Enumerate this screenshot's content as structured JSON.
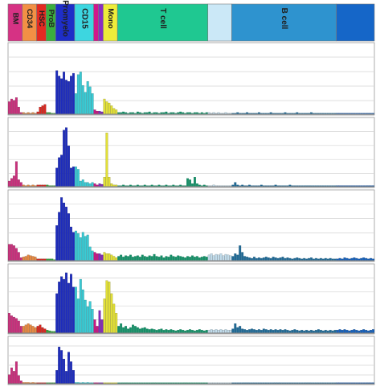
{
  "chart_data": {
    "type": "bar",
    "title": "",
    "xlabel": "",
    "ylabel": "",
    "grid": true,
    "cell_types": [
      {
        "key": "bm",
        "label": "BM",
        "color": "#d63284",
        "samples": 6
      },
      {
        "key": "cd34",
        "label": "CD34",
        "color": "#f29045",
        "samples": 6
      },
      {
        "key": "hsc",
        "label": "HSC",
        "color": "#e32a22",
        "samples": 4
      },
      {
        "key": "prob",
        "label": "ProB",
        "color": "#3aae3f",
        "samples": 4
      },
      {
        "key": "promyelo",
        "label": "Promyelo",
        "color": "#1e2ec8",
        "samples": 8
      },
      {
        "key": "cd15",
        "label": "CD15",
        "color": "#3dd6e0",
        "samples": 8
      },
      {
        "key": "baso",
        "label": "",
        "color": "#d1178a",
        "samples": 2
      },
      {
        "key": "eos",
        "label": "",
        "color": "#8a2dc2",
        "samples": 2
      },
      {
        "key": "mono",
        "label": "Mono",
        "color": "#eeec3a",
        "samples": 6
      },
      {
        "key": "tcell",
        "label": "T cell",
        "color": "#1fc891",
        "samples": 38
      },
      {
        "key": "nk",
        "label": "",
        "color": "#cbe8f7",
        "samples": 10
      },
      {
        "key": "bcell",
        "label": "B cell",
        "color": "#2e93cf",
        "samples": 44
      },
      {
        "key": "plasma",
        "label": "",
        "color": "#1566c8",
        "samples": 16
      }
    ],
    "series": [
      {
        "name": "",
        "values": {
          "bm": [
            0.18,
            0.22,
            0.2,
            0.24,
            0.1,
            0.02
          ],
          "cd34": [
            0.02,
            0.01,
            0.02,
            0.01,
            0.02,
            0.01
          ],
          "hsc": [
            0.03,
            0.1,
            0.12,
            0.14
          ],
          "prob": [
            0.02,
            0.02,
            0.01,
            0.01
          ],
          "promyelo": [
            0.64,
            0.56,
            0.52,
            0.62,
            0.5,
            0.48,
            0.56,
            0.6
          ],
          "cd15": [
            0.3,
            0.58,
            0.62,
            0.42,
            0.32,
            0.48,
            0.4,
            0.3
          ],
          "baso": [
            0.06,
            0.04
          ],
          "eos": [
            0.04,
            0.03
          ],
          "mono": [
            0.22,
            0.18,
            0.16,
            0.12,
            0.08,
            0.06
          ],
          "tcell": [
            0.02,
            0.02,
            0.03,
            0.02,
            0.01,
            0.02,
            0.02,
            0.01,
            0.03,
            0.02,
            0.01,
            0.02,
            0.02,
            0.03,
            0.01,
            0.02,
            0.02,
            0.01,
            0.02,
            0.02,
            0.03,
            0.01,
            0.02,
            0.02,
            0.01,
            0.02,
            0.03,
            0.02,
            0.01,
            0.02,
            0.02,
            0.01,
            0.02,
            0.02,
            0.01,
            0.02,
            0.01,
            0.02
          ],
          "nk": [
            0.02,
            0.01,
            0.02,
            0.01,
            0.02,
            0.01,
            0.01,
            0.02,
            0.01,
            0.01
          ],
          "bcell": [
            0.01,
            0.01,
            0.02,
            0.01,
            0.01,
            0.01,
            0.02,
            0.01,
            0.01,
            0.01,
            0.01,
            0.02,
            0.01,
            0.01,
            0.01,
            0.01,
            0.02,
            0.01,
            0.01,
            0.01,
            0.01,
            0.01,
            0.02,
            0.01,
            0.01,
            0.01,
            0.01,
            0.02,
            0.01,
            0.01,
            0.01,
            0.01,
            0.01,
            0.02,
            0.01,
            0.01,
            0.01,
            0.01,
            0.01,
            0.01,
            0.01,
            0.01,
            0.01,
            0.01
          ],
          "plasma": [
            0.01,
            0.01,
            0.01,
            0.01,
            0.01,
            0.01,
            0.01,
            0.01,
            0.01,
            0.01,
            0.01,
            0.01,
            0.01,
            0.01,
            0.01,
            0.01
          ]
        }
      },
      {
        "name": "",
        "values": {
          "bm": [
            0.08,
            0.12,
            0.16,
            0.38,
            0.1,
            0.06
          ],
          "cd34": [
            0.02,
            0.01,
            0.02,
            0.01,
            0.02,
            0.01
          ],
          "hsc": [
            0.02,
            0.02,
            0.02,
            0.02
          ],
          "prob": [
            0.02,
            0.01,
            0.01,
            0.01
          ],
          "promyelo": [
            0.28,
            0.44,
            0.48,
            0.86,
            0.9,
            0.62,
            0.28,
            0.3
          ],
          "cd15": [
            0.3,
            0.26,
            0.08,
            0.1,
            0.06,
            0.06,
            0.04,
            0.06
          ],
          "baso": [
            0.04,
            0.02
          ],
          "eos": [
            0.04,
            0.03
          ],
          "mono": [
            0.14,
            0.82,
            0.14,
            0.04,
            0.02,
            0.02
          ],
          "tcell": [
            0.01,
            0.01,
            0.02,
            0.01,
            0.01,
            0.02,
            0.01,
            0.01,
            0.02,
            0.01,
            0.01,
            0.02,
            0.01,
            0.01,
            0.02,
            0.01,
            0.01,
            0.02,
            0.01,
            0.01,
            0.02,
            0.01,
            0.01,
            0.02,
            0.01,
            0.01,
            0.02,
            0.01,
            0.01,
            0.12,
            0.1,
            0.04,
            0.14,
            0.04,
            0.02,
            0.01,
            0.02,
            0.01
          ],
          "nk": [
            0.01,
            0.01,
            0.02,
            0.01,
            0.01,
            0.01,
            0.01,
            0.01,
            0.01,
            0.01
          ],
          "bcell": [
            0.02,
            0.06,
            0.02,
            0.01,
            0.02,
            0.01,
            0.01,
            0.02,
            0.01,
            0.01,
            0.01,
            0.01,
            0.02,
            0.01,
            0.01,
            0.01,
            0.01,
            0.01,
            0.02,
            0.01,
            0.01,
            0.01,
            0.01,
            0.01,
            0.02,
            0.01,
            0.01,
            0.01,
            0.01,
            0.01,
            0.01,
            0.01,
            0.01,
            0.01,
            0.01,
            0.01,
            0.01,
            0.01,
            0.01,
            0.01,
            0.01,
            0.01,
            0.01,
            0.01
          ],
          "plasma": [
            0.01,
            0.01,
            0.01,
            0.01,
            0.01,
            0.01,
            0.01,
            0.01,
            0.01,
            0.01,
            0.01,
            0.01,
            0.01,
            0.01,
            0.01,
            0.01
          ]
        }
      },
      {
        "name": "",
        "values": {
          "bm": [
            0.24,
            0.24,
            0.22,
            0.18,
            0.12,
            0.04
          ],
          "cd34": [
            0.05,
            0.06,
            0.08,
            0.07,
            0.06,
            0.05
          ],
          "hsc": [
            0.02,
            0.02,
            0.02,
            0.02
          ],
          "prob": [
            0.02,
            0.02,
            0.02,
            0.01
          ],
          "promyelo": [
            0.52,
            0.72,
            0.94,
            0.86,
            0.8,
            0.7,
            0.5,
            0.42
          ],
          "cd15": [
            0.44,
            0.4,
            0.34,
            0.42,
            0.36,
            0.38,
            0.2,
            0.14
          ],
          "baso": [
            0.12,
            0.1
          ],
          "eos": [
            0.1,
            0.08
          ],
          "mono": [
            0.12,
            0.1,
            0.1,
            0.08,
            0.06,
            0.04
          ],
          "tcell": [
            0.06,
            0.08,
            0.05,
            0.07,
            0.06,
            0.08,
            0.05,
            0.06,
            0.07,
            0.05,
            0.08,
            0.06,
            0.05,
            0.07,
            0.06,
            0.09,
            0.06,
            0.05,
            0.07,
            0.04,
            0.06,
            0.05,
            0.08,
            0.06,
            0.05,
            0.07,
            0.06,
            0.05,
            0.04,
            0.06,
            0.05,
            0.07,
            0.05,
            0.06,
            0.04,
            0.05,
            0.06,
            0.05
          ],
          "nk": [
            0.08,
            0.1,
            0.07,
            0.09,
            0.08,
            0.1,
            0.07,
            0.09,
            0.08,
            0.07
          ],
          "bcell": [
            0.06,
            0.1,
            0.08,
            0.22,
            0.12,
            0.06,
            0.05,
            0.04,
            0.03,
            0.05,
            0.03,
            0.04,
            0.03,
            0.04,
            0.05,
            0.04,
            0.03,
            0.05,
            0.04,
            0.03,
            0.04,
            0.05,
            0.03,
            0.04,
            0.03,
            0.02,
            0.03,
            0.04,
            0.03,
            0.02,
            0.03,
            0.02,
            0.03,
            0.04,
            0.02,
            0.03,
            0.02,
            0.03,
            0.02,
            0.03,
            0.02,
            0.03,
            0.02,
            0.02
          ],
          "plasma": [
            0.02,
            0.03,
            0.02,
            0.04,
            0.03,
            0.02,
            0.03,
            0.04,
            0.03,
            0.02,
            0.03,
            0.04,
            0.03,
            0.02,
            0.03,
            0.02
          ]
        }
      },
      {
        "name": "",
        "values": {
          "bm": [
            0.3,
            0.26,
            0.24,
            0.22,
            0.18,
            0.1
          ],
          "cd34": [
            0.1,
            0.12,
            0.14,
            0.12,
            0.1,
            0.08
          ],
          "hsc": [
            0.1,
            0.12,
            0.08,
            0.06
          ],
          "prob": [
            0.04,
            0.03,
            0.02,
            0.02
          ],
          "promyelo": [
            0.6,
            0.78,
            0.86,
            0.82,
            0.92,
            0.76,
            0.9,
            0.7
          ],
          "cd15": [
            0.7,
            0.52,
            0.82,
            0.66,
            0.5,
            0.4,
            0.48,
            0.36
          ],
          "baso": [
            0.2,
            0.1
          ],
          "eos": [
            0.34,
            0.2
          ],
          "mono": [
            0.52,
            0.8,
            0.78,
            0.6,
            0.44,
            0.3
          ],
          "tcell": [
            0.1,
            0.14,
            0.08,
            0.1,
            0.06,
            0.08,
            0.12,
            0.1,
            0.08,
            0.06,
            0.07,
            0.08,
            0.06,
            0.05,
            0.06,
            0.05,
            0.04,
            0.05,
            0.06,
            0.04,
            0.05,
            0.04,
            0.05,
            0.04,
            0.03,
            0.04,
            0.05,
            0.04,
            0.03,
            0.04,
            0.05,
            0.04,
            0.03,
            0.04,
            0.05,
            0.04,
            0.03,
            0.04
          ],
          "nk": [
            0.04,
            0.05,
            0.04,
            0.05,
            0.04,
            0.05,
            0.04,
            0.05,
            0.04,
            0.04
          ],
          "bcell": [
            0.06,
            0.14,
            0.08,
            0.1,
            0.06,
            0.05,
            0.04,
            0.05,
            0.06,
            0.05,
            0.04,
            0.05,
            0.04,
            0.06,
            0.05,
            0.04,
            0.05,
            0.04,
            0.05,
            0.04,
            0.05,
            0.04,
            0.05,
            0.04,
            0.03,
            0.04,
            0.05,
            0.04,
            0.03,
            0.04,
            0.03,
            0.04,
            0.03,
            0.04,
            0.03,
            0.04,
            0.05,
            0.04,
            0.03,
            0.04,
            0.03,
            0.04,
            0.03,
            0.04
          ],
          "plasma": [
            0.04,
            0.05,
            0.04,
            0.05,
            0.04,
            0.03,
            0.04,
            0.05,
            0.04,
            0.03,
            0.04,
            0.05,
            0.04,
            0.03,
            0.04,
            0.05
          ]
        }
      },
      {
        "name": "",
        "values": {
          "bm": [
            0.2,
            0.36,
            0.28,
            0.5,
            0.18,
            0.06
          ],
          "cd34": [
            0.02,
            0.02,
            0.02,
            0.01,
            0.02,
            0.01
          ],
          "hsc": [
            0.01,
            0.01,
            0.01,
            0.01
          ],
          "prob": [
            0.01,
            0.01,
            0.01,
            0.01
          ],
          "promyelo": [
            0.3,
            0.84,
            0.76,
            0.56,
            0.28,
            0.72,
            0.5,
            0.3
          ],
          "cd15": [
            0.02,
            0.02,
            0.01,
            0.02,
            0.01,
            0.02,
            0.01,
            0.01
          ],
          "baso": [
            0.01,
            0.01
          ],
          "eos": [
            0.01,
            0.01
          ],
          "mono": [
            0.01,
            0.01,
            0.01,
            0.01,
            0.01,
            0.01
          ],
          "tcell": [
            0.01,
            0.01,
            0.01,
            0.01,
            0.01,
            0.01,
            0.01,
            0.01,
            0.01,
            0.01,
            0.01,
            0.01,
            0.01,
            0.01,
            0.01,
            0.01,
            0.01,
            0.01,
            0.01,
            0.01,
            0.01,
            0.01,
            0.01,
            0.01,
            0.01,
            0.01,
            0.01,
            0.01,
            0.01,
            0.01,
            0.01,
            0.01,
            0.01,
            0.01,
            0.01,
            0.01,
            0.01,
            0.01
          ],
          "nk": [
            0.01,
            0.01,
            0.01,
            0.01,
            0.01,
            0.01,
            0.01,
            0.01,
            0.01,
            0.01
          ],
          "bcell": [
            0.01,
            0.01,
            0.01,
            0.01,
            0.01,
            0.01,
            0.01,
            0.01,
            0.01,
            0.01,
            0.01,
            0.01,
            0.01,
            0.01,
            0.01,
            0.01,
            0.01,
            0.01,
            0.01,
            0.01,
            0.01,
            0.01,
            0.01,
            0.01,
            0.01,
            0.01,
            0.01,
            0.01,
            0.01,
            0.01,
            0.01,
            0.01,
            0.01,
            0.01,
            0.01,
            0.01,
            0.01,
            0.01,
            0.01,
            0.01,
            0.01,
            0.01,
            0.01,
            0.01
          ],
          "plasma": [
            0.01,
            0.01,
            0.01,
            0.01,
            0.01,
            0.01,
            0.01,
            0.01,
            0.01,
            0.01,
            0.01,
            0.01,
            0.01,
            0.01,
            0.01,
            0.01
          ]
        }
      }
    ]
  }
}
